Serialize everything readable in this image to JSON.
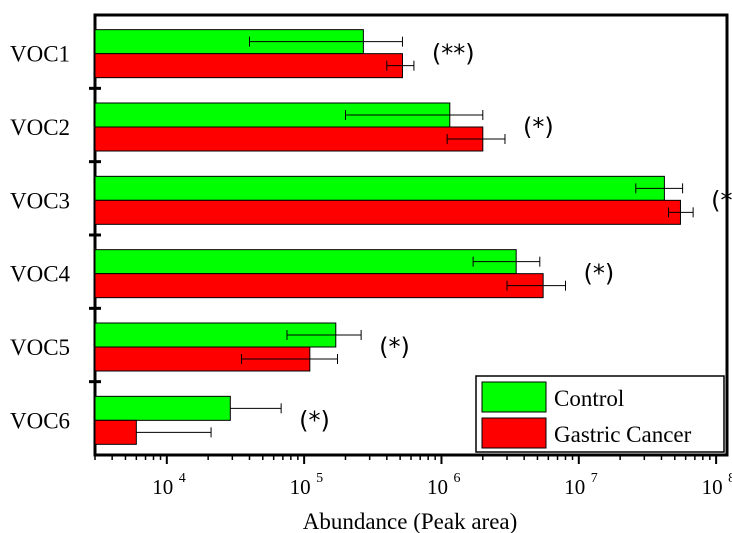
{
  "chart_data": {
    "type": "bar",
    "orientation": "horizontal",
    "xlabel": "Abundance (Peak area)",
    "ylabel": "",
    "x_scale": "log",
    "xlim": [
      3000,
      120000000
    ],
    "x_ticks": [
      {
        "value": 10000,
        "base": "10",
        "exp": "4"
      },
      {
        "value": 100000,
        "base": "10",
        "exp": "5"
      },
      {
        "value": 1000000,
        "base": "10",
        "exp": "6"
      },
      {
        "value": 10000000,
        "base": "10",
        "exp": "7"
      },
      {
        "value": 100000000,
        "base": "10",
        "exp": "8"
      }
    ],
    "categories": [
      "VOC1",
      "VOC2",
      "VOC3",
      "VOC4",
      "VOC5",
      "VOC6"
    ],
    "significance": [
      "(**)",
      "(*)",
      "(*)",
      "(*)",
      "(*)",
      "(*)"
    ],
    "series": [
      {
        "name": "Control",
        "color": "#00ff00",
        "values": [
          270000,
          1150000,
          42000000,
          3500000,
          170000,
          29000
        ],
        "error_low": [
          40000,
          200000,
          26000000,
          1700000,
          75000,
          null
        ],
        "error_high": [
          520000,
          2000000,
          57000000,
          5200000,
          260000,
          68000
        ]
      },
      {
        "name": "Gastric Cancer",
        "color": "#ff0000",
        "values": [
          520000,
          2000000,
          55000000,
          5500000,
          110000,
          6000
        ],
        "error_low": [
          400000,
          1100000,
          45000000,
          3000000,
          35000,
          null
        ],
        "error_high": [
          630000,
          2900000,
          68000000,
          8000000,
          175000,
          21000
        ]
      }
    ],
    "legend_position": "bottom-right",
    "grid": false
  }
}
